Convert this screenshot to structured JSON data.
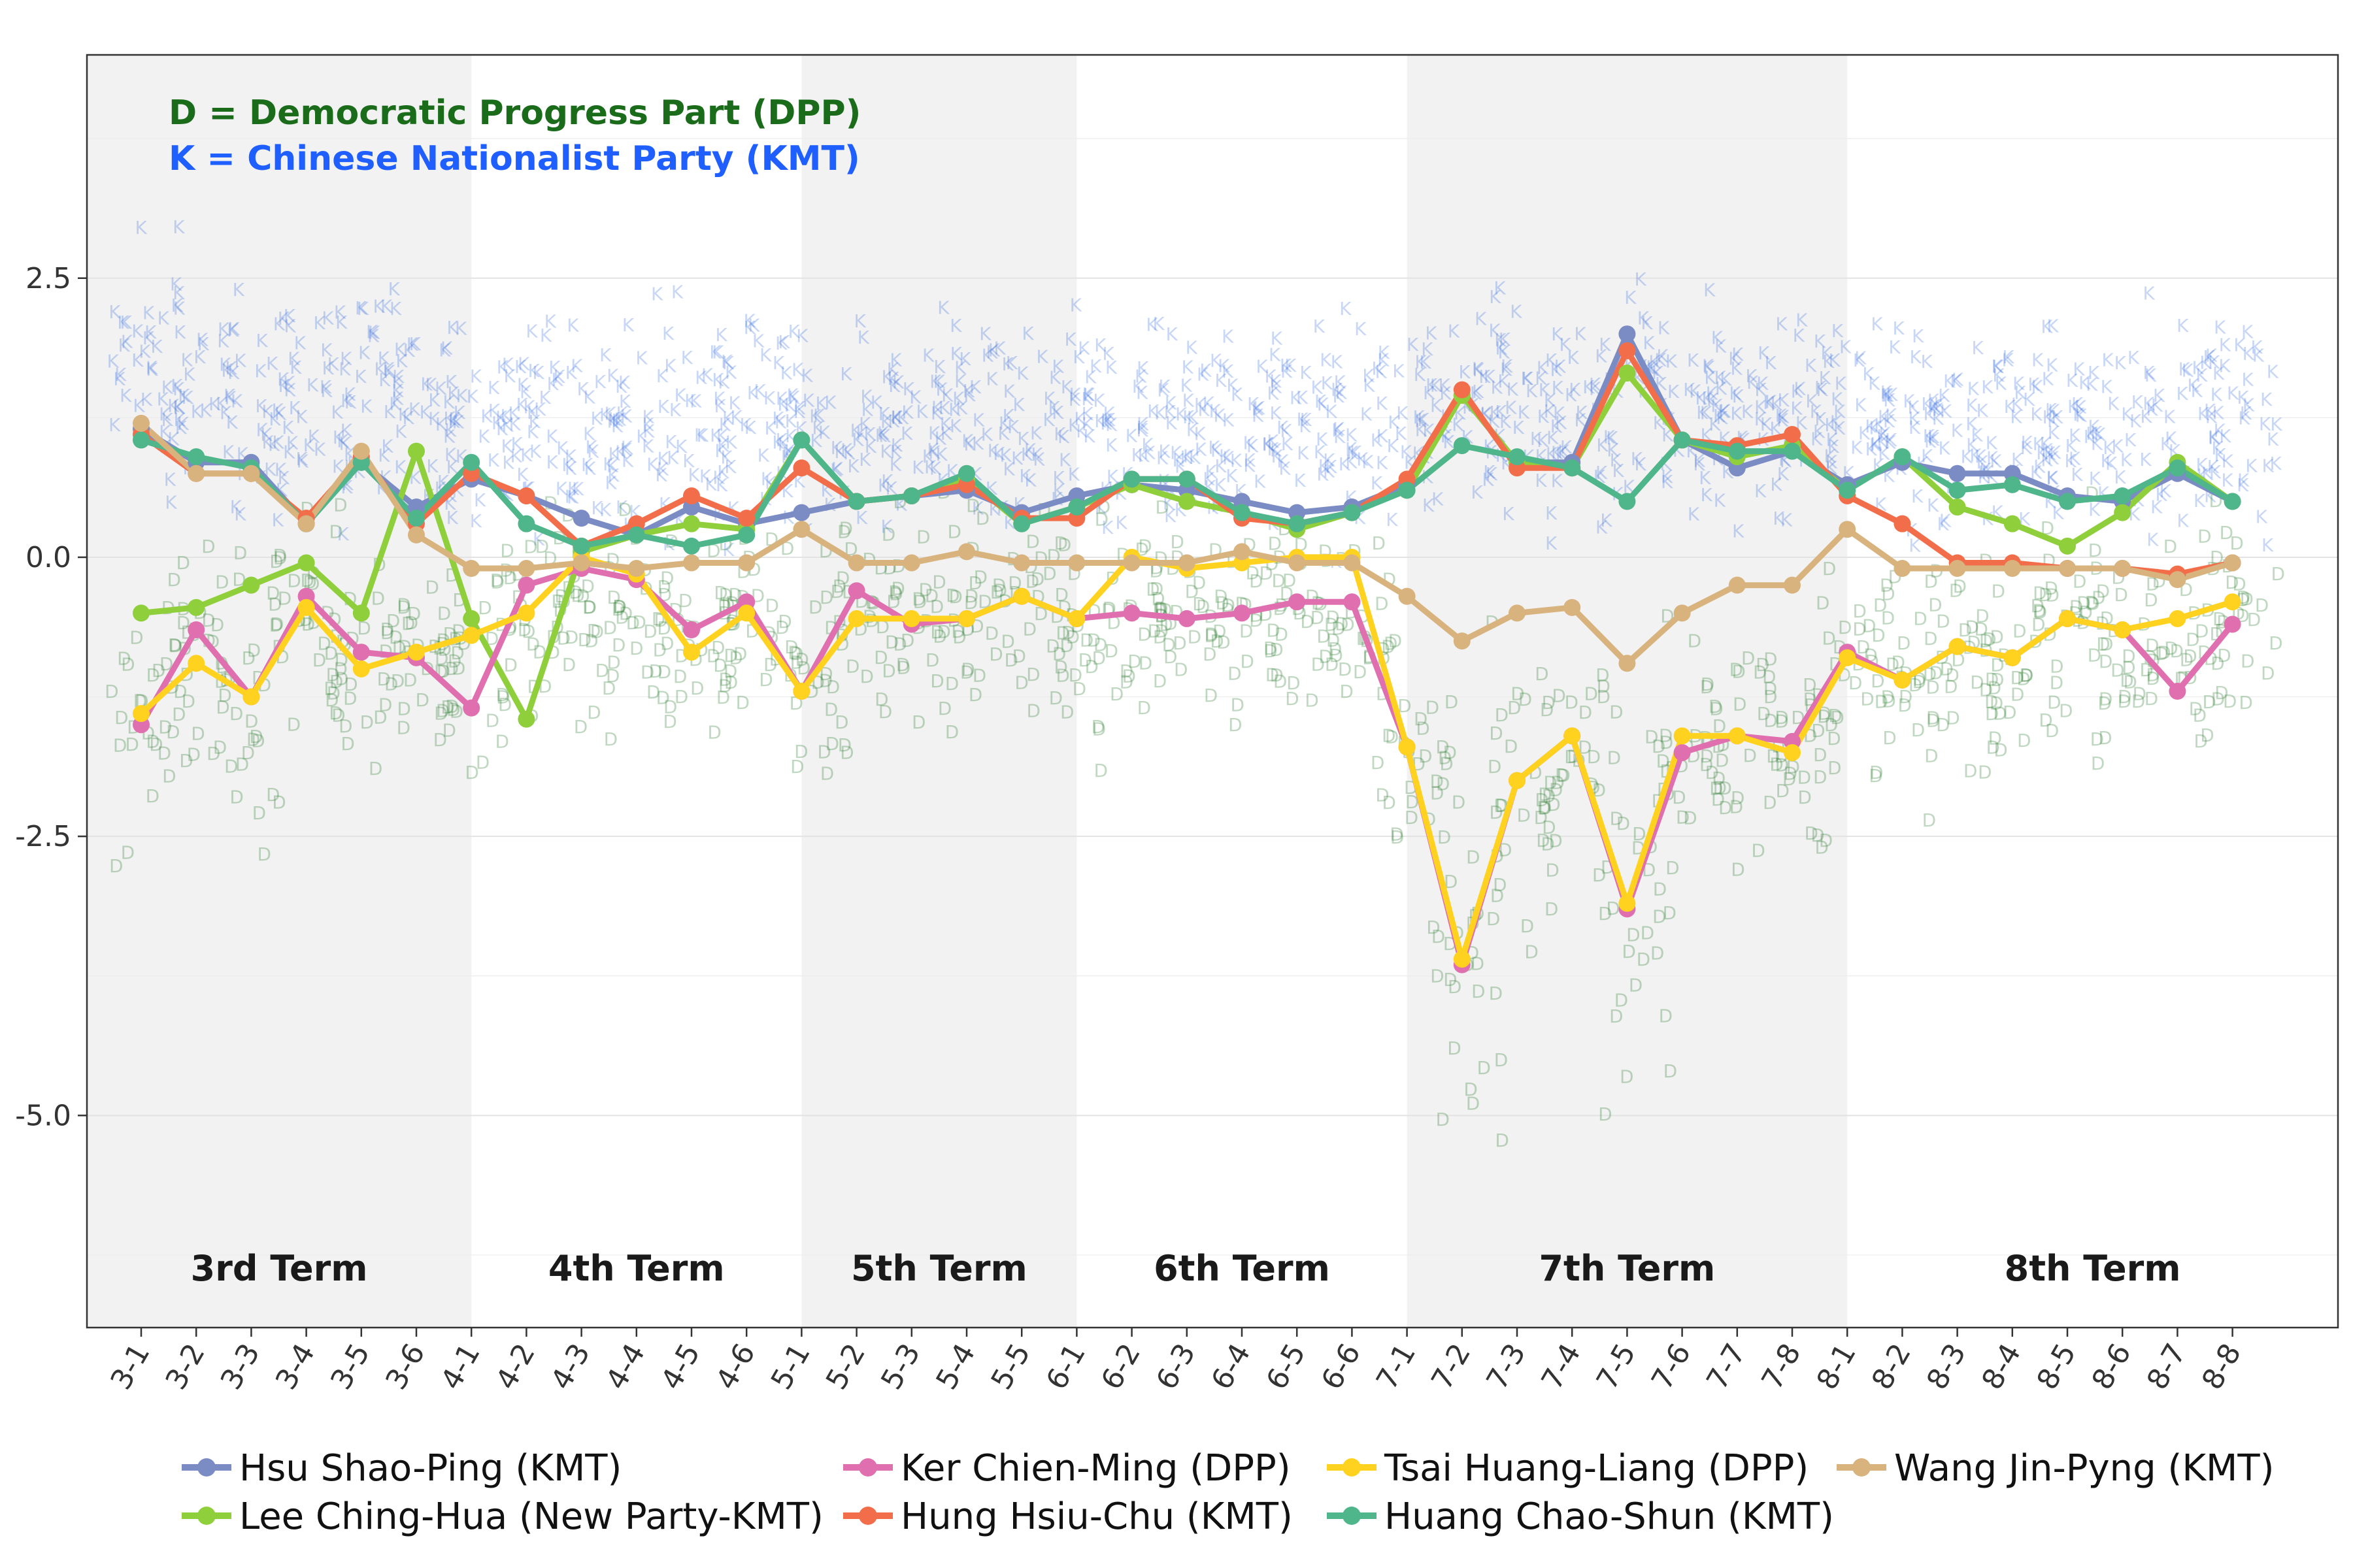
{
  "chart_data": {
    "type": "line",
    "title": "",
    "xlabel": "",
    "ylabel": "",
    "ylim": [
      -6.9,
      4.5
    ],
    "yticks": [
      2.5,
      0.0,
      -2.5,
      -5.0
    ],
    "ytick_labels": [
      "2.5",
      "0.0",
      "-2.5",
      "-5.0"
    ],
    "grid": true,
    "legend_position": "bottom",
    "x": [
      "3-1",
      "3-2",
      "3-3",
      "3-4",
      "3-5",
      "3-6",
      "4-1",
      "4-2",
      "4-3",
      "4-4",
      "4-5",
      "4-6",
      "5-1",
      "5-2",
      "5-3",
      "5-4",
      "5-5",
      "6-1",
      "6-2",
      "6-3",
      "6-4",
      "6-5",
      "6-6",
      "7-1",
      "7-2",
      "7-3",
      "7-4",
      "7-5",
      "7-6",
      "7-7",
      "7-8",
      "8-1",
      "8-2",
      "8-3",
      "8-4",
      "8-5",
      "8-6",
      "8-7",
      "8-8"
    ],
    "terms": [
      {
        "label": "3rd Term",
        "start": "3-1",
        "end": "3-6",
        "shaded": true
      },
      {
        "label": "4th Term",
        "start": "4-1",
        "end": "4-6",
        "shaded": false
      },
      {
        "label": "5th Term",
        "start": "5-1",
        "end": "5-5",
        "shaded": true
      },
      {
        "label": "6th Term",
        "start": "6-1",
        "end": "6-6",
        "shaded": false
      },
      {
        "label": "7th Term",
        "start": "7-1",
        "end": "7-8",
        "shaded": true
      },
      {
        "label": "8th Term",
        "start": "8-1",
        "end": "8-8",
        "shaded": false
      }
    ],
    "annotations": [
      {
        "text": "D =  Democratic Progress Part (DPP)",
        "color": "#1a6b1a"
      },
      {
        "text": "K =  Chinese Nationalist Party (KMT)",
        "color": "#1f5fff"
      }
    ],
    "background_clouds": [
      {
        "letter": "D",
        "party": "DPP",
        "color": "#2e7d32"
      },
      {
        "letter": "K",
        "party": "KMT",
        "color": "#3b6fe0"
      }
    ],
    "series": [
      {
        "name": "Hsu Shao-Ping (KMT)",
        "color": "#7b8cc4",
        "values": [
          1.15,
          0.85,
          0.85,
          0.3,
          0.85,
          0.45,
          0.7,
          0.55,
          0.35,
          0.2,
          0.45,
          0.3,
          0.4,
          0.5,
          0.55,
          0.6,
          0.4,
          0.55,
          0.65,
          0.6,
          0.5,
          0.4,
          0.45,
          0.65,
          1.45,
          0.85,
          0.85,
          2.0,
          1.05,
          0.8,
          0.95,
          0.65,
          0.85,
          0.75,
          0.75,
          0.55,
          0.5,
          0.75,
          0.5
        ]
      },
      {
        "name": "Lee Ching-Hua (New Party-KMT)",
        "color": "#8fcf3c",
        "values": [
          -0.5,
          -0.45,
          -0.25,
          -0.05,
          -0.5,
          0.95,
          -0.55,
          -1.45,
          0.05,
          0.2,
          0.3,
          0.25,
          1.05,
          0.5,
          0.55,
          0.7,
          0.3,
          0.45,
          0.65,
          0.5,
          0.4,
          0.25,
          0.4,
          0.6,
          1.45,
          0.85,
          0.8,
          1.65,
          1.05,
          0.9,
          1.0,
          0.6,
          0.9,
          0.45,
          0.3,
          0.1,
          0.4,
          0.85,
          0.5
        ]
      },
      {
        "name": "Ker Chien-Ming (DPP)",
        "color": "#e06fb0",
        "values": [
          -1.5,
          -0.65,
          -1.25,
          -0.35,
          -0.85,
          -0.9,
          -1.35,
          -0.25,
          -0.1,
          -0.2,
          -0.65,
          -0.4,
          -1.2,
          -0.3,
          -0.6,
          -0.55,
          -0.35,
          -0.55,
          -0.5,
          -0.55,
          -0.5,
          -0.4,
          -0.4,
          -1.7,
          -3.65,
          -2.0,
          -1.6,
          -3.15,
          -1.75,
          -1.6,
          -1.65,
          -0.85,
          -1.1,
          -0.8,
          -0.9,
          -0.55,
          -0.65,
          -1.2,
          -0.6
        ]
      },
      {
        "name": "Hung Hsiu-Chu (KMT)",
        "color": "#f26e4a",
        "values": [
          1.1,
          0.75,
          0.75,
          0.35,
          0.9,
          0.3,
          0.75,
          0.55,
          0.1,
          0.3,
          0.55,
          0.35,
          0.8,
          0.5,
          0.55,
          0.65,
          0.35,
          0.35,
          0.7,
          0.7,
          0.35,
          0.3,
          0.4,
          0.7,
          1.5,
          0.8,
          0.8,
          1.85,
          1.05,
          1.0,
          1.1,
          0.55,
          0.3,
          -0.05,
          -0.05,
          -0.1,
          -0.1,
          -0.15,
          -0.05
        ]
      },
      {
        "name": "Tsai Huang-Liang (DPP)",
        "color": "#ffd21f",
        "values": [
          -1.4,
          -0.95,
          -1.25,
          -0.45,
          -1.0,
          -0.85,
          -0.7,
          -0.5,
          0.0,
          -0.15,
          -0.85,
          -0.5,
          -1.2,
          -0.55,
          -0.55,
          -0.55,
          -0.35,
          -0.55,
          0.0,
          -0.1,
          -0.05,
          0.0,
          0.0,
          -1.7,
          -3.6,
          -2.0,
          -1.6,
          -3.1,
          -1.6,
          -1.6,
          -1.75,
          -0.9,
          -1.1,
          -0.8,
          -0.9,
          -0.55,
          -0.65,
          -0.55,
          -0.4
        ]
      },
      {
        "name": "Huang Chao-Shun (KMT)",
        "color": "#4fb58a",
        "values": [
          1.05,
          0.9,
          0.8,
          0.3,
          0.85,
          0.35,
          0.85,
          0.3,
          0.1,
          0.2,
          0.1,
          0.2,
          1.05,
          0.5,
          0.55,
          0.75,
          0.3,
          0.45,
          0.7,
          0.7,
          0.4,
          0.3,
          0.4,
          0.6,
          1.0,
          0.9,
          0.8,
          0.5,
          1.05,
          0.95,
          0.95,
          0.6,
          0.9,
          0.6,
          0.65,
          0.5,
          0.55,
          0.8,
          0.5
        ]
      },
      {
        "name": "Wang Jin-Pyng (KMT)",
        "color": "#d8b37e",
        "values": [
          1.2,
          0.75,
          0.75,
          0.3,
          0.95,
          0.2,
          -0.1,
          -0.1,
          -0.05,
          -0.1,
          -0.05,
          -0.05,
          0.25,
          -0.05,
          -0.05,
          0.05,
          -0.05,
          -0.05,
          -0.05,
          -0.05,
          0.05,
          -0.05,
          -0.05,
          -0.35,
          -0.75,
          -0.5,
          -0.45,
          -0.95,
          -0.5,
          -0.25,
          -0.25,
          0.25,
          -0.1,
          -0.1,
          -0.1,
          -0.1,
          -0.1,
          -0.2,
          -0.05
        ]
      }
    ]
  }
}
